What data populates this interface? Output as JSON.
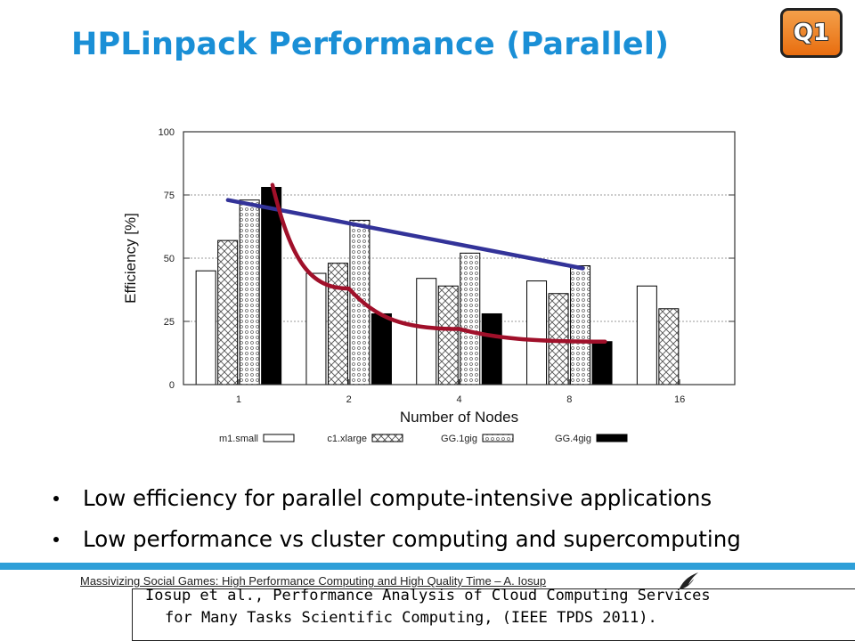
{
  "slide": {
    "title": "HPLinpack Performance (Parallel)",
    "badge": "Q1",
    "bullets": [
      "Low efficiency for parallel compute-intensive applications",
      "Low performance vs cluster computing and supercomputing"
    ],
    "footer": "Massivizing Social Games: High Performance Computing and High Quality Time – A. Iosup",
    "reference_line1": "Iosup et al., Performance Analysis of Cloud Computing Services",
    "reference_line2": "for Many Tasks Scientific Computing, (IEEE TPDS 2011).",
    "accent_color": "#1a8fd6",
    "badge_color": "#e8791c"
  },
  "chart_data": {
    "type": "bar",
    "xlabel": "Number of Nodes",
    "ylabel": "Efficiency [%]",
    "categories": [
      "1",
      "2",
      "4",
      "8",
      "16"
    ],
    "ylim": [
      0,
      100
    ],
    "yticks": [
      0,
      25,
      50,
      75,
      100
    ],
    "grid": true,
    "legend_position": "bottom",
    "series": [
      {
        "name": "m1.small",
        "pattern": "white",
        "values": [
          45,
          44,
          42,
          41,
          39
        ]
      },
      {
        "name": "c1.xlarge",
        "pattern": "crosshatch",
        "values": [
          57,
          48,
          39,
          36,
          30
        ]
      },
      {
        "name": "GG.1gig",
        "pattern": "dotted",
        "values": [
          73,
          65,
          52,
          47,
          null
        ]
      },
      {
        "name": "GG.4gig",
        "pattern": "black",
        "values": [
          78,
          28,
          28,
          17,
          null
        ]
      }
    ],
    "annotations": [
      {
        "type": "trend-line",
        "color": "#333399",
        "from": {
          "x": "1",
          "y": 73
        },
        "to": {
          "x": "8",
          "y": 46
        }
      },
      {
        "type": "trend-curve",
        "color": "#a0102a",
        "points": [
          {
            "x": "1",
            "y": 79
          },
          {
            "x": "2",
            "y": 38
          },
          {
            "x": "4",
            "y": 22
          },
          {
            "x": "8",
            "y": 17
          }
        ]
      }
    ]
  }
}
